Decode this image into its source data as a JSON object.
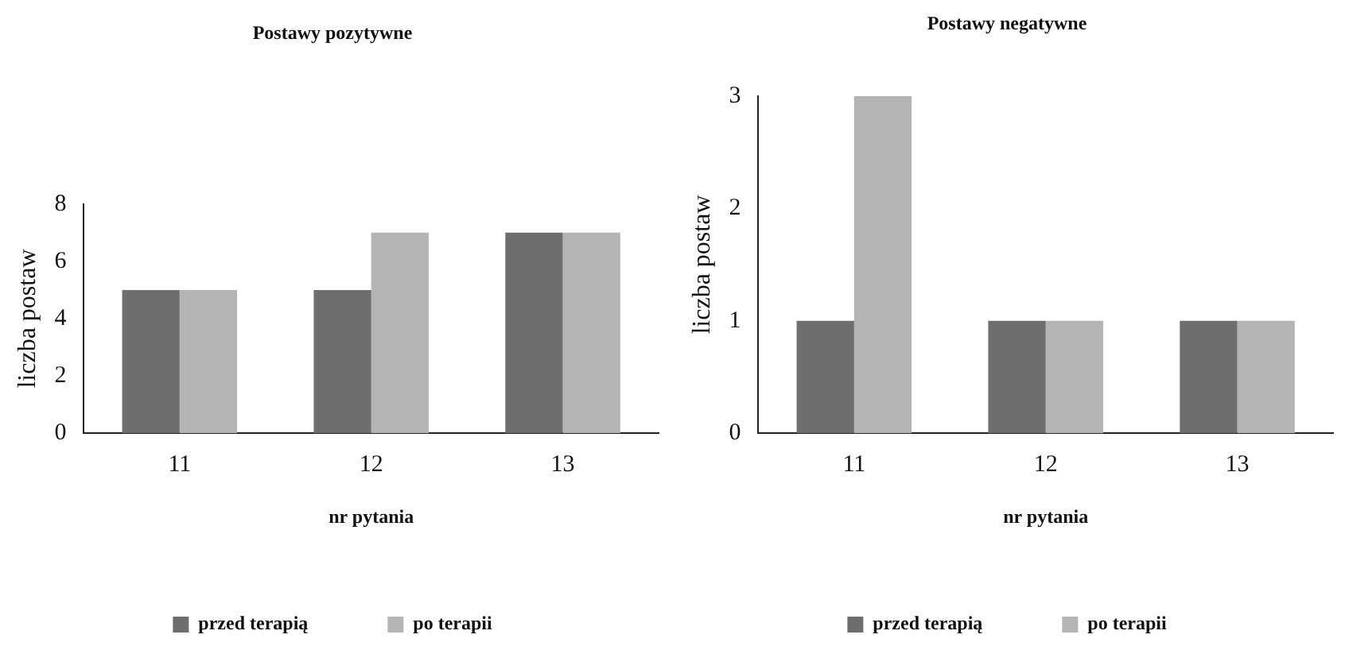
{
  "chart_data": [
    {
      "type": "bar",
      "title": "Postawy pozytywne",
      "xlabel": "nr pytania",
      "ylabel": "liczba postaw",
      "categories": [
        "11",
        "12",
        "13"
      ],
      "series": [
        {
          "name": "przed terapią",
          "color": "#6e6e6e",
          "values": [
            5,
            5,
            7
          ]
        },
        {
          "name": "po terapii",
          "color": "#b4b4b4",
          "values": [
            5,
            7,
            7
          ]
        }
      ],
      "ylim": [
        0,
        8
      ],
      "yticks": [
        0,
        2,
        4,
        6,
        8
      ],
      "grid": false,
      "legend": "bottom"
    },
    {
      "type": "bar",
      "title": "Postawy negatywne",
      "xlabel": "nr pytania",
      "ylabel": "liczba postaw",
      "categories": [
        "11",
        "12",
        "13"
      ],
      "series": [
        {
          "name": "przed terapią",
          "color": "#6e6e6e",
          "values": [
            1,
            1,
            1
          ]
        },
        {
          "name": "po terapii",
          "color": "#b4b4b4",
          "values": [
            3,
            1,
            1
          ]
        }
      ],
      "ylim": [
        0,
        3
      ],
      "yticks": [
        0,
        1,
        2,
        3
      ],
      "grid": false,
      "legend": "bottom"
    }
  ]
}
